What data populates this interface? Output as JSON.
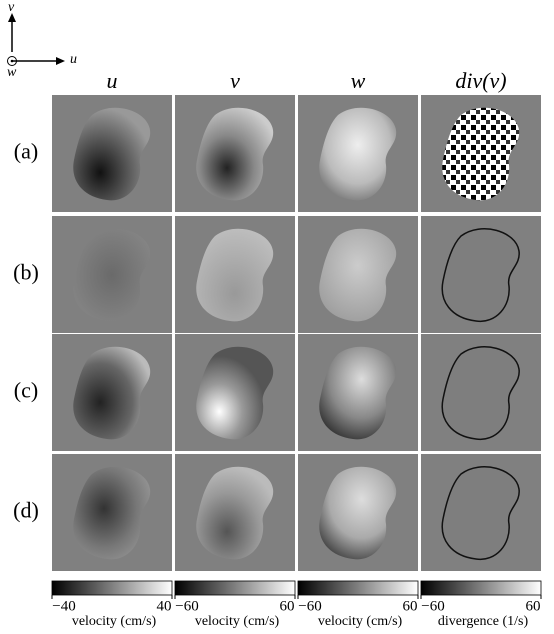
{
  "axis_icon": {
    "up": "v",
    "right": "u",
    "out": "w"
  },
  "rows": [
    "(a)",
    "(b)",
    "(c)",
    "(d)"
  ],
  "columns": [
    {
      "header": "u",
      "colorbar": {
        "lim": [
          -40,
          40
        ],
        "ticks": [
          {
            "value": -40,
            "label": "−40"
          },
          40
        ],
        "label": "velocity (cm/s)"
      }
    },
    {
      "header": "v",
      "colorbar": {
        "lim": [
          -60,
          60
        ],
        "ticks": [
          {
            "value": -60,
            "label": "−60"
          },
          60
        ],
        "label": "velocity (cm/s)"
      }
    },
    {
      "header": "w",
      "colorbar": {
        "lim": [
          -60,
          60
        ],
        "ticks": [
          {
            "value": -60,
            "label": "−60"
          },
          60
        ],
        "label": "velocity (cm/s)"
      }
    },
    {
      "header": "div(ν)",
      "colorbar": {
        "lim": [
          -60,
          60
        ],
        "ticks": [
          {
            "value": -60,
            "label": "−60"
          },
          60
        ],
        "label": "divergence (1/s)"
      }
    }
  ]
}
